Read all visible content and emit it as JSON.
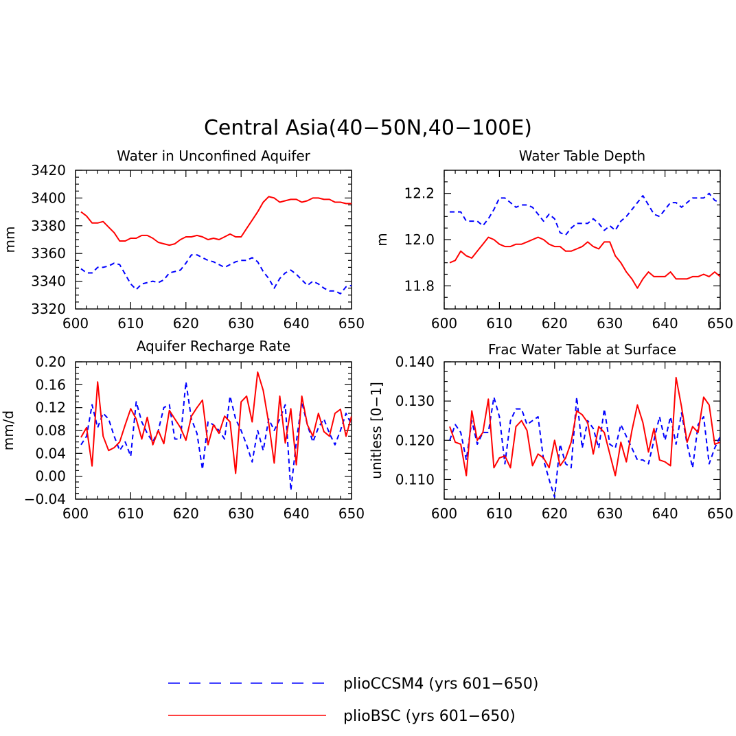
{
  "figure": {
    "title": "Central Asia(40−50N,40−100E)"
  },
  "legend": {
    "entries": [
      {
        "label": "plioCCSM4 (yrs 601−650)",
        "color": "#0000ff",
        "dash": "dashed"
      },
      {
        "label": "plioBSC (yrs 601−650)",
        "color": "#ff0000",
        "dash": "solid"
      }
    ]
  },
  "chart_data": [
    {
      "type": "line",
      "title": "Water in Unconfined Aquifer",
      "xlabel": "",
      "ylabel": "mm",
      "xlim": [
        600,
        650
      ],
      "ylim": [
        3320,
        3420
      ],
      "xticks": [
        600,
        610,
        620,
        630,
        640,
        650
      ],
      "xtick_labels": [
        "600",
        "610",
        "620",
        "630",
        "640",
        "650"
      ],
      "yticks": [
        3320,
        3340,
        3360,
        3380,
        3400,
        3420
      ],
      "ytick_labels": [
        "3320",
        "3340",
        "3360",
        "3380",
        "3400",
        "3420"
      ],
      "x_start": 601,
      "series": [
        {
          "name": "plioCCSM4 (yrs 601−650)",
          "color": "#0000ff",
          "dash": "dashed",
          "values": [
            3349,
            3346,
            3346,
            3350,
            3350,
            3351,
            3353,
            3352,
            3345,
            3338,
            3334,
            3338,
            3339,
            3340,
            3339,
            3341,
            3346,
            3347,
            3348,
            3353,
            3359,
            3359,
            3357,
            3355,
            3354,
            3352,
            3350,
            3352,
            3354,
            3355,
            3355,
            3357,
            3354,
            3347,
            3342,
            3335,
            3342,
            3346,
            3348,
            3345,
            3341,
            3337,
            3340,
            3338,
            3335,
            3333,
            3333,
            3331,
            3336,
            3337
          ]
        },
        {
          "name": "plioBSC (yrs 601−650)",
          "color": "#ff0000",
          "dash": "solid",
          "values": [
            3390,
            3387,
            3382,
            3382,
            3383,
            3379,
            3375,
            3369,
            3369,
            3371,
            3371,
            3373,
            3373,
            3371,
            3368,
            3367,
            3366,
            3367,
            3370,
            3372,
            3372,
            3373,
            3372,
            3370,
            3371,
            3370,
            3372,
            3374,
            3372,
            3372,
            3378,
            3384,
            3390,
            3397,
            3401,
            3400,
            3397,
            3398,
            3399,
            3399,
            3397,
            3398,
            3400,
            3400,
            3399,
            3399,
            3397,
            3397,
            3396,
            3396
          ]
        }
      ]
    },
    {
      "type": "line",
      "title": "Water Table Depth",
      "xlabel": "",
      "ylabel": "m",
      "xlim": [
        600,
        650
      ],
      "ylim": [
        11.7,
        12.3
      ],
      "xticks": [
        600,
        610,
        620,
        630,
        640,
        650
      ],
      "xtick_labels": [
        "600",
        "610",
        "620",
        "630",
        "640",
        "650"
      ],
      "yticks": [
        11.8,
        12.0,
        12.2
      ],
      "ytick_labels": [
        "11.8",
        "12.0",
        "12.2"
      ],
      "x_start": 601,
      "series": [
        {
          "name": "plioCCSM4 (yrs 601−650)",
          "color": "#0000ff",
          "dash": "dashed",
          "values": [
            12.12,
            12.12,
            12.12,
            12.08,
            12.08,
            12.08,
            12.06,
            12.09,
            12.13,
            12.18,
            12.18,
            12.16,
            12.14,
            12.15,
            12.15,
            12.14,
            12.11,
            12.08,
            12.11,
            12.09,
            12.03,
            12.02,
            12.05,
            12.07,
            12.07,
            12.07,
            12.09,
            12.07,
            12.04,
            12.06,
            12.04,
            12.08,
            12.1,
            12.13,
            12.16,
            12.19,
            12.15,
            12.11,
            12.1,
            12.13,
            12.16,
            12.16,
            12.14,
            12.16,
            12.18,
            12.18,
            12.18,
            12.2,
            12.17,
            12.16
          ]
        },
        {
          "name": "plioBSC (yrs 601−650)",
          "color": "#ff0000",
          "dash": "solid",
          "values": [
            11.9,
            11.91,
            11.95,
            11.93,
            11.92,
            11.95,
            11.98,
            12.01,
            12.0,
            11.98,
            11.97,
            11.97,
            11.98,
            11.98,
            11.99,
            12.0,
            12.01,
            12.0,
            11.98,
            11.97,
            11.97,
            11.95,
            11.95,
            11.96,
            11.97,
            11.99,
            11.97,
            11.96,
            11.99,
            11.99,
            11.93,
            11.9,
            11.86,
            11.83,
            11.79,
            11.83,
            11.86,
            11.84,
            11.84,
            11.84,
            11.86,
            11.83,
            11.83,
            11.83,
            11.84,
            11.84,
            11.85,
            11.84,
            11.86,
            11.84
          ]
        }
      ]
    },
    {
      "type": "line",
      "title": "Aquifer Recharge Rate",
      "xlabel": "",
      "ylabel": "mm/d",
      "xlim": [
        600,
        650
      ],
      "ylim": [
        -0.04,
        0.2
      ],
      "xticks": [
        600,
        610,
        620,
        630,
        640,
        650
      ],
      "xtick_labels": [
        "600",
        "610",
        "620",
        "630",
        "640",
        "650"
      ],
      "yticks": [
        -0.04,
        0.0,
        0.04,
        0.08,
        0.12,
        0.16,
        0.2
      ],
      "ytick_labels": [
        "−0.04",
        "0.00",
        "0.04",
        "0.08",
        "0.12",
        "0.16",
        "0.20"
      ],
      "x_start": 601,
      "series": [
        {
          "name": "plioCCSM4 (yrs 601−650)",
          "color": "#0000ff",
          "dash": "dashed",
          "values": [
            0.055,
            0.07,
            0.125,
            0.085,
            0.11,
            0.1,
            0.07,
            0.045,
            0.06,
            0.035,
            0.13,
            0.095,
            0.075,
            0.06,
            0.08,
            0.12,
            0.125,
            0.065,
            0.065,
            0.165,
            0.1,
            0.075,
            0.012,
            0.095,
            0.09,
            0.08,
            0.065,
            0.14,
            0.1,
            0.08,
            0.055,
            0.025,
            0.08,
            0.045,
            0.1,
            0.08,
            0.1,
            0.125,
            -0.025,
            0.06,
            0.13,
            0.09,
            0.06,
            0.085,
            0.1,
            0.075,
            0.055,
            0.08,
            0.11,
            0.09
          ]
        },
        {
          "name": "plioBSC (yrs 601−650)",
          "color": "#ff0000",
          "dash": "solid",
          "values": [
            0.068,
            0.085,
            0.018,
            0.165,
            0.07,
            0.045,
            0.05,
            0.06,
            0.09,
            0.118,
            0.1,
            0.065,
            0.103,
            0.055,
            0.08,
            0.057,
            0.115,
            0.1,
            0.085,
            0.063,
            0.105,
            0.12,
            0.133,
            0.055,
            0.09,
            0.075,
            0.105,
            0.095,
            0.005,
            0.13,
            0.14,
            0.095,
            0.182,
            0.15,
            0.093,
            0.023,
            0.14,
            0.058,
            0.118,
            0.02,
            0.14,
            0.09,
            0.07,
            0.11,
            0.078,
            0.07,
            0.11,
            0.117,
            0.07,
            0.105
          ]
        }
      ]
    },
    {
      "type": "line",
      "title": "Frac Water Table at Surface",
      "xlabel": "",
      "ylabel": "unitless [0−1]",
      "xlim": [
        600,
        650
      ],
      "ylim": [
        0.105,
        0.14
      ],
      "xticks": [
        600,
        610,
        620,
        630,
        640,
        650
      ],
      "xtick_labels": [
        "600",
        "610",
        "620",
        "630",
        "640",
        "650"
      ],
      "yticks": [
        0.11,
        0.12,
        0.13,
        0.14
      ],
      "ytick_labels": [
        "0.110",
        "0.120",
        "0.130",
        "0.140"
      ],
      "x_start": 601,
      "series": [
        {
          "name": "plioCCSM4 (yrs 601−650)",
          "color": "#0000ff",
          "dash": "dashed",
          "values": [
            0.12,
            0.124,
            0.122,
            0.115,
            0.125,
            0.119,
            0.122,
            0.122,
            0.131,
            0.126,
            0.114,
            0.125,
            0.128,
            0.128,
            0.124,
            0.125,
            0.126,
            0.115,
            0.11,
            0.1055,
            0.119,
            0.114,
            0.113,
            0.131,
            0.118,
            0.125,
            0.123,
            0.118,
            0.128,
            0.119,
            0.118,
            0.124,
            0.121,
            0.118,
            0.115,
            0.115,
            0.114,
            0.12,
            0.126,
            0.12,
            0.126,
            0.119,
            0.127,
            0.119,
            0.113,
            0.124,
            0.126,
            0.114,
            0.118,
            0.121
          ]
        },
        {
          "name": "plioBSC (yrs 601−650)",
          "color": "#ff0000",
          "dash": "solid",
          "values": [
            0.1235,
            0.1195,
            0.119,
            0.111,
            0.1275,
            0.12,
            0.122,
            0.1305,
            0.113,
            0.1155,
            0.116,
            0.113,
            0.1235,
            0.125,
            0.1225,
            0.1135,
            0.1165,
            0.1155,
            0.113,
            0.12,
            0.1135,
            0.1155,
            0.1195,
            0.1275,
            0.1265,
            0.1245,
            0.1165,
            0.1235,
            0.122,
            0.1165,
            0.111,
            0.1195,
            0.1145,
            0.1225,
            0.129,
            0.1245,
            0.117,
            0.123,
            0.115,
            0.1145,
            0.1135,
            0.136,
            0.1285,
            0.1195,
            0.1235,
            0.122,
            0.131,
            0.129,
            0.119,
            0.1195
          ]
        }
      ]
    }
  ]
}
